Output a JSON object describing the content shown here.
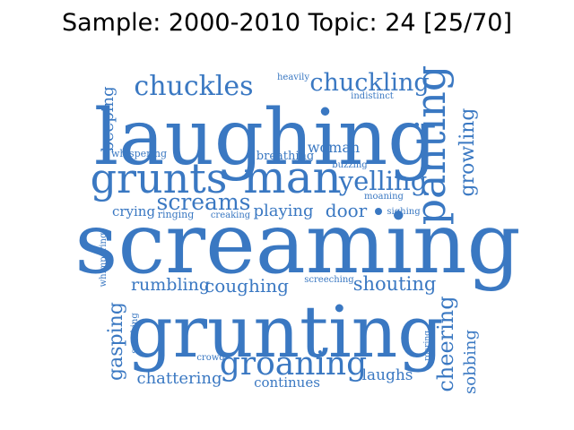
{
  "title": "Sample: 2000-2010 Topic: 24 [25/70]",
  "word_color": "#3a78c2",
  "words": [
    {
      "text": "laughing",
      "weight": 100
    },
    {
      "text": "screaming",
      "weight": 100
    },
    {
      "text": "grunting",
      "weight": 95
    },
    {
      "text": "man",
      "weight": 55
    },
    {
      "text": "grunts",
      "weight": 50
    },
    {
      "text": "panting",
      "weight": 48
    },
    {
      "text": "groaning",
      "weight": 42
    },
    {
      "text": "chuckles",
      "weight": 35
    },
    {
      "text": "chuckling",
      "weight": 33
    },
    {
      "text": "yelling",
      "weight": 33
    },
    {
      "text": "screams",
      "weight": 30
    },
    {
      "text": "growling",
      "weight": 26
    },
    {
      "text": "cheering",
      "weight": 28
    },
    {
      "text": "gasping",
      "weight": 25
    },
    {
      "text": "shouting",
      "weight": 24
    },
    {
      "text": "coughing",
      "weight": 24
    },
    {
      "text": "rumbling",
      "weight": 23
    },
    {
      "text": "door",
      "weight": 23
    },
    {
      "text": "playing",
      "weight": 22
    },
    {
      "text": "beeping",
      "weight": 22
    },
    {
      "text": "sobbing",
      "weight": 21
    },
    {
      "text": "chattering",
      "weight": 21
    },
    {
      "text": "woman",
      "weight": 20
    },
    {
      "text": "laughs",
      "weight": 20
    },
    {
      "text": "continues",
      "weight": 18
    },
    {
      "text": "crying",
      "weight": 18
    },
    {
      "text": "breathing",
      "weight": 15
    },
    {
      "text": "whispering",
      "weight": 12
    },
    {
      "text": "ringing",
      "weight": 12
    },
    {
      "text": "creaking",
      "weight": 11
    },
    {
      "text": "sighing",
      "weight": 11
    },
    {
      "text": "screeching",
      "weight": 10
    },
    {
      "text": "buzzing",
      "weight": 10
    },
    {
      "text": "moaning",
      "weight": 10
    },
    {
      "text": "indistinct",
      "weight": 10
    },
    {
      "text": "heavily",
      "weight": 10
    },
    {
      "text": "whimpering",
      "weight": 10
    },
    {
      "text": "speaking",
      "weight": 10
    },
    {
      "text": "crowd",
      "weight": 10
    },
    {
      "text": "roaring",
      "weight": 9
    }
  ]
}
